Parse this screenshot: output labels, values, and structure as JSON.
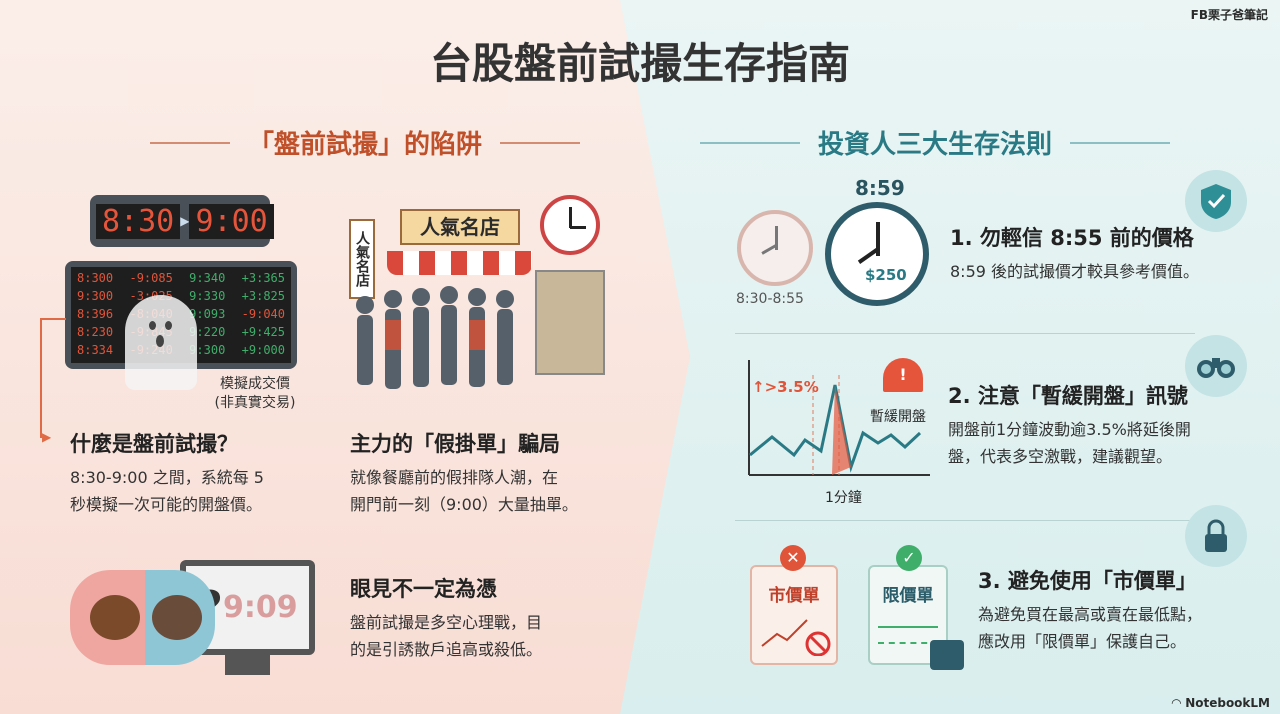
{
  "brand": "FB栗子爸筆記",
  "title": "台股盤前試撮生存指南",
  "left": {
    "section_title": "「盤前試撮」的陷阱",
    "scoreboard": {
      "start": "8:30",
      "end": "9:00",
      "rows": [
        [
          "8:300",
          "-9:085",
          "9:340",
          "+3:365"
        ],
        [
          "9:300",
          "-3:025",
          "9:330",
          "+3:825"
        ],
        [
          "8:396",
          "-8:040",
          "9:093",
          "-9:040"
        ],
        [
          "8:230",
          "-9:845",
          "9:220",
          "+9:425"
        ],
        [
          "8:334",
          "-9:240",
          "9:300",
          "+9:000"
        ]
      ]
    },
    "ghost_caption": [
      "模擬成交價",
      "(非真實交易)"
    ],
    "shop_sign": "人氣名店",
    "shop_side_sign": "人氣名店",
    "monitor_text": "9:09",
    "items": [
      {
        "heading": "什麼是盤前試撮？",
        "body": [
          "8:30-9:00 之間，系統每 5",
          "秒模擬一次可能的開盤價。"
        ]
      },
      {
        "heading": "主力的「假掛單」騙局",
        "body": [
          "就像餐廳前的假排隊人潮，在",
          "開門前一刻（9:00）大量抽單。"
        ]
      },
      {
        "heading": "眼見不一定為憑",
        "body": [
          "盤前試撮是多空心理戰，目",
          "的是引誘散戶追高或殺低。"
        ]
      }
    ]
  },
  "right": {
    "section_title": "投資人三大生存法則",
    "clock_label_top": "8:59",
    "clock_label_small": "8:30-8:55",
    "clock_price": "$250",
    "chart_label_up": "↑>3.5%",
    "chart_label_x": "1分鐘",
    "alarm_label": "暫緩開盤",
    "card_market": "市價單",
    "card_limit": "限價單",
    "rules": [
      {
        "heading": "1. 勿輕信 8:55 前的價格",
        "body": [
          "8:59 後的試撮價才較具參考價值。"
        ],
        "icon": "shield-check-icon"
      },
      {
        "heading": "2. 注意「暫緩開盤」訊號",
        "body": [
          "開盤前1分鐘波動逾3.5%將延後開",
          "盤，代表多空激戰，建議觀望。"
        ],
        "icon": "binoculars-icon"
      },
      {
        "heading": "3. 避免使用「市價單」",
        "body": [
          "為避免買在最高或賣在最低點，",
          "應改用「限價單」保護自己。"
        ],
        "icon": "lock-icon"
      }
    ]
  },
  "footer": {
    "logo": "NotebookLM"
  },
  "colors": {
    "left_accent": "#c0502a",
    "right_accent": "#2a7a85",
    "red": "#e0553a",
    "green": "#3fae6a"
  }
}
